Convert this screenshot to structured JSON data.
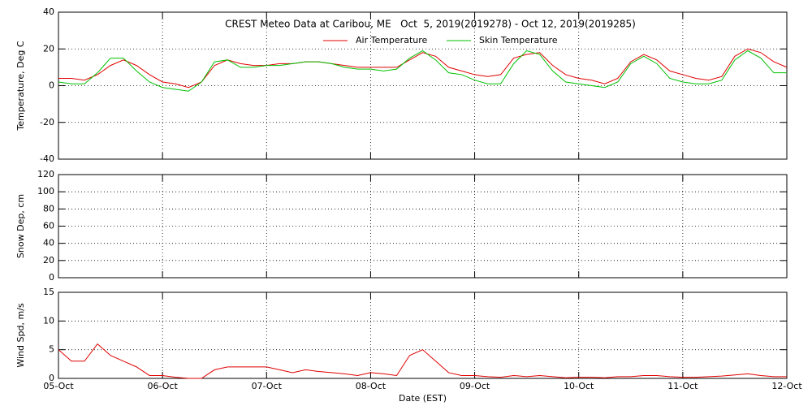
{
  "chart_data": [
    {
      "type": "line",
      "title": "CREST Meteo Data at Caribou, ME   Oct  5, 2019(2019278) - Oct 12, 2019(2019285)",
      "ylabel": "Temperature, Deg C",
      "x": [
        0,
        0.125,
        0.25,
        0.375,
        0.5,
        0.625,
        0.75,
        0.875,
        1,
        1.125,
        1.25,
        1.375,
        1.5,
        1.625,
        1.75,
        1.875,
        2,
        2.125,
        2.25,
        2.375,
        2.5,
        2.625,
        2.75,
        2.875,
        3,
        3.125,
        3.25,
        3.375,
        3.5,
        3.625,
        3.75,
        3.875,
        4,
        4.125,
        4.25,
        4.375,
        4.5,
        4.625,
        4.75,
        4.875,
        5,
        5.125,
        5.25,
        5.375,
        5.5,
        5.625,
        5.75,
        5.875,
        6,
        6.125,
        6.25,
        6.375,
        6.5,
        6.625,
        6.75,
        6.875,
        7
      ],
      "series": [
        {
          "name": "Air Temperature",
          "color": "#e00000",
          "values": [
            4,
            4,
            3,
            6,
            11,
            14,
            11,
            6,
            2,
            1,
            -1,
            2,
            11,
            14,
            12,
            11,
            11,
            12,
            12,
            13,
            13,
            12,
            11,
            10,
            10,
            10,
            10,
            14,
            18,
            16,
            10,
            8,
            6,
            5,
            6,
            15,
            17,
            18,
            11,
            6,
            4,
            3,
            1,
            4,
            13,
            17,
            14,
            8,
            6,
            4,
            3,
            5,
            16,
            20,
            18,
            13,
            10
          ]
        },
        {
          "name": "Skin Temperature",
          "color": "#00c000",
          "values": [
            2,
            1,
            1,
            7,
            15,
            15,
            8,
            2,
            -1,
            -2,
            -3,
            2,
            13,
            14,
            10,
            10,
            11,
            11,
            12,
            13,
            13,
            12,
            10,
            9,
            9,
            8,
            9,
            15,
            19,
            14,
            7,
            6,
            3,
            1,
            1,
            12,
            19,
            17,
            8,
            2,
            1,
            0,
            -1,
            2,
            12,
            16,
            12,
            4,
            2,
            1,
            1,
            3,
            14,
            19,
            15,
            7,
            7
          ]
        }
      ],
      "xlim": [
        0,
        7
      ],
      "xticks": [
        0,
        1,
        2,
        3,
        4,
        5,
        6,
        7
      ],
      "ylim": [
        -40,
        40
      ],
      "yticks": [
        -40,
        -20,
        0,
        20,
        40
      ],
      "grid": true
    },
    {
      "type": "line",
      "ylabel": "Snow Dep, cm",
      "series": [],
      "xlim": [
        0,
        7
      ],
      "xticks": [
        0,
        1,
        2,
        3,
        4,
        5,
        6,
        7
      ],
      "ylim": [
        0,
        120
      ],
      "yticks": [
        0,
        20,
        40,
        60,
        80,
        100,
        120
      ],
      "grid": true
    },
    {
      "type": "line",
      "ylabel": "Wind Spd, m/s",
      "xlabel": "Date (EST)",
      "x": [
        0,
        0.125,
        0.25,
        0.375,
        0.5,
        0.625,
        0.75,
        0.875,
        1,
        1.125,
        1.25,
        1.375,
        1.5,
        1.625,
        1.75,
        1.875,
        2,
        2.125,
        2.25,
        2.375,
        2.5,
        2.625,
        2.75,
        2.875,
        3,
        3.125,
        3.25,
        3.375,
        3.5,
        3.625,
        3.75,
        3.875,
        4,
        4.125,
        4.25,
        4.375,
        4.5,
        4.625,
        4.75,
        4.875,
        5,
        5.125,
        5.25,
        5.375,
        5.5,
        5.625,
        5.75,
        5.875,
        6,
        6.125,
        6.25,
        6.375,
        6.5,
        6.625,
        6.75,
        6.875,
        7
      ],
      "series": [
        {
          "color": "#e00000",
          "values": [
            5,
            3,
            3,
            6,
            4,
            3,
            2,
            0.5,
            0.5,
            0.2,
            0,
            0,
            1.5,
            2,
            2,
            2,
            2,
            1.5,
            1,
            1.5,
            1.2,
            1,
            0.8,
            0.5,
            1,
            0.8,
            0.5,
            4,
            5,
            3,
            1,
            0.5,
            0.5,
            0.3,
            0.2,
            0.5,
            0.3,
            0.5,
            0.3,
            0.1,
            0.2,
            0.2,
            0.1,
            0.3,
            0.3,
            0.5,
            0.5,
            0.3,
            0.2,
            0.2,
            0.3,
            0.4,
            0.6,
            0.8,
            0.5,
            0.3,
            0.3
          ]
        }
      ],
      "xlim": [
        0,
        7
      ],
      "xticks": [
        {
          "value": 0,
          "label": "05-Oct"
        },
        {
          "value": 1,
          "label": "06-Oct"
        },
        {
          "value": 2,
          "label": "07-Oct"
        },
        {
          "value": 3,
          "label": "08-Oct"
        },
        {
          "value": 4,
          "label": "09-Oct"
        },
        {
          "value": 5,
          "label": "10-Oct"
        },
        {
          "value": 6,
          "label": "11-Oct"
        },
        {
          "value": 7,
          "label": "12-Oct"
        }
      ],
      "ylim": [
        0,
        15
      ],
      "yticks": [
        0,
        5,
        10,
        15
      ],
      "grid": true
    }
  ]
}
